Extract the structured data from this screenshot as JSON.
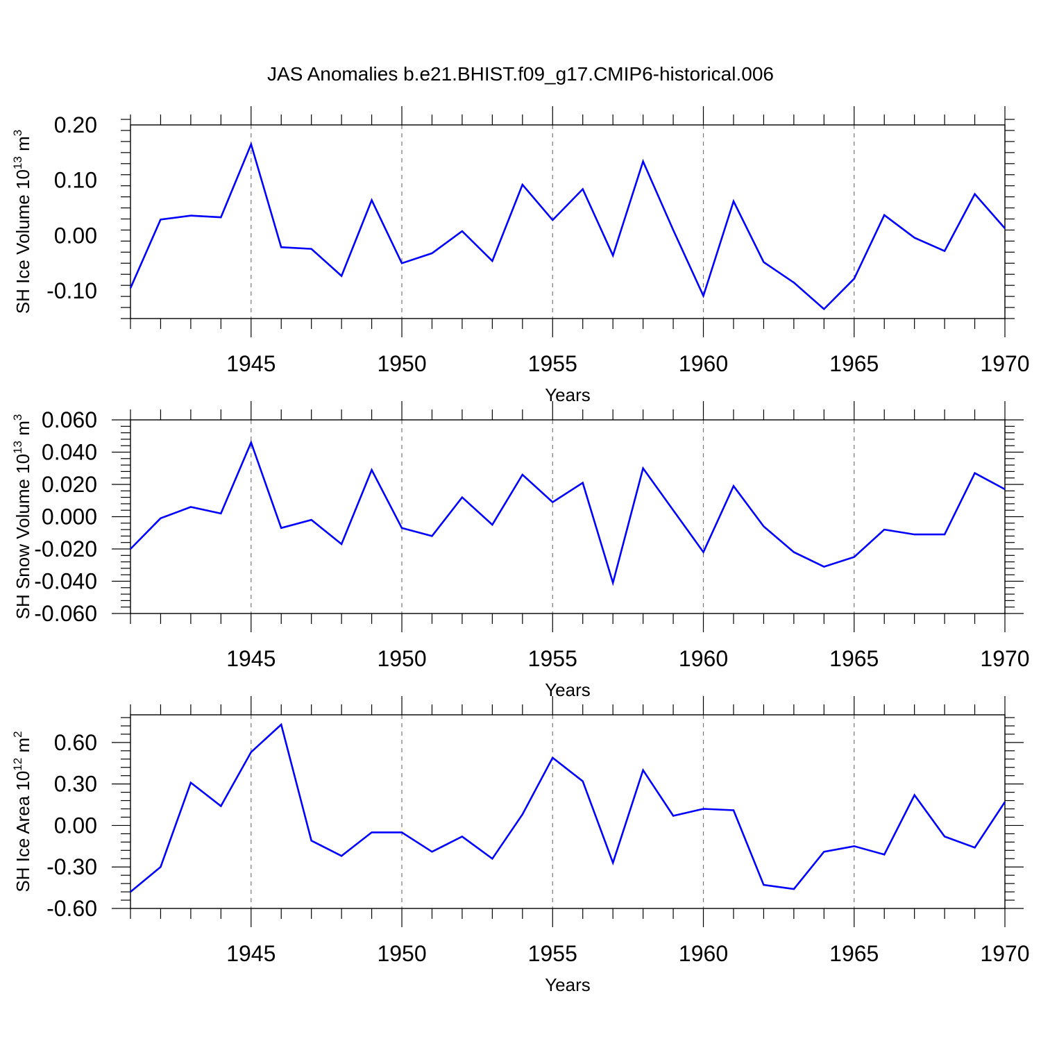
{
  "title": "JAS Anomalies b.e21.BHIST.f09_g17.CMIP6-historical.006",
  "colors": {
    "line": "#0000ff",
    "axis": "#000000",
    "grid": "#777777"
  },
  "chart_data": [
    {
      "type": "line",
      "ylabel": {
        "text": "SH Ice Volume 10",
        "exp": "13",
        "unit": " m",
        "unit_exp": "3"
      },
      "xlabel": "Years",
      "xlim": [
        1941,
        1970
      ],
      "ylim": [
        -0.15,
        0.2
      ],
      "yticks": [
        0.2,
        0.1,
        0.0,
        -0.1
      ],
      "ytick_labels": [
        "0.20",
        "0.10",
        "0.00",
        "-0.10"
      ],
      "xticks": [
        1945,
        1950,
        1955,
        1960,
        1965,
        1970
      ],
      "xtick_labels": [
        "1945",
        "1950",
        "1955",
        "1960",
        "1965",
        "1970"
      ],
      "x": [
        1941,
        1942,
        1943,
        1944,
        1945,
        1946,
        1947,
        1948,
        1949,
        1950,
        1951,
        1952,
        1953,
        1954,
        1955,
        1956,
        1957,
        1958,
        1959,
        1960,
        1961,
        1962,
        1963,
        1964,
        1965,
        1966,
        1967,
        1968,
        1969,
        1970
      ],
      "values": [
        -0.095,
        0.029,
        0.036,
        0.033,
        0.165,
        -0.021,
        -0.024,
        -0.073,
        0.064,
        -0.05,
        -0.032,
        0.008,
        -0.046,
        0.092,
        0.028,
        0.084,
        -0.036,
        0.134,
        0.01,
        -0.109,
        0.062,
        -0.048,
        -0.085,
        -0.133,
        -0.078,
        0.037,
        -0.004,
        -0.028,
        0.075,
        0.013
      ]
    },
    {
      "type": "line",
      "ylabel": {
        "text": "SH Snow Volume 10",
        "exp": "13",
        "unit": " m",
        "unit_exp": "3"
      },
      "xlabel": "Years",
      "xlim": [
        1941,
        1970
      ],
      "ylim": [
        -0.06,
        0.06
      ],
      "yticks": [
        0.06,
        0.04,
        0.02,
        0.0,
        -0.02,
        -0.04,
        -0.06
      ],
      "ytick_labels": [
        "0.060",
        "0.040",
        "0.020",
        "0.000",
        "-0.020",
        "-0.040",
        "-0.060"
      ],
      "xticks": [
        1945,
        1950,
        1955,
        1960,
        1965,
        1970
      ],
      "xtick_labels": [
        "1945",
        "1950",
        "1955",
        "1960",
        "1965",
        "1970"
      ],
      "x": [
        1941,
        1942,
        1943,
        1944,
        1945,
        1946,
        1947,
        1948,
        1949,
        1950,
        1951,
        1952,
        1953,
        1954,
        1955,
        1956,
        1957,
        1958,
        1959,
        1960,
        1961,
        1962,
        1963,
        1964,
        1965,
        1966,
        1967,
        1968,
        1969,
        1970
      ],
      "values": [
        -0.02,
        -0.001,
        0.006,
        0.002,
        0.046,
        -0.007,
        -0.002,
        -0.017,
        0.029,
        -0.007,
        -0.012,
        0.012,
        -0.005,
        0.026,
        0.009,
        0.021,
        -0.041,
        0.03,
        0.004,
        -0.022,
        0.019,
        -0.006,
        -0.022,
        -0.031,
        -0.025,
        -0.008,
        -0.011,
        -0.011,
        0.027,
        0.017
      ]
    },
    {
      "type": "line",
      "ylabel": {
        "text": "SH Ice Area 10",
        "exp": "12",
        "unit": " m",
        "unit_exp": "2"
      },
      "xlabel": "Years",
      "xlim": [
        1941,
        1970
      ],
      "ylim": [
        -0.6,
        0.8
      ],
      "yticks": [
        0.6,
        0.3,
        0.0,
        -0.3,
        -0.6
      ],
      "ytick_labels": [
        "0.60",
        "0.30",
        "0.00",
        "-0.30",
        "-0.60"
      ],
      "xticks": [
        1945,
        1950,
        1955,
        1960,
        1965,
        1970
      ],
      "xtick_labels": [
        "1945",
        "1950",
        "1955",
        "1960",
        "1965",
        "1970"
      ],
      "x": [
        1941,
        1942,
        1943,
        1944,
        1945,
        1946,
        1947,
        1948,
        1949,
        1950,
        1951,
        1952,
        1953,
        1954,
        1955,
        1956,
        1957,
        1958,
        1959,
        1960,
        1961,
        1962,
        1963,
        1964,
        1965,
        1966,
        1967,
        1968,
        1969,
        1970
      ],
      "values": [
        -0.48,
        -0.3,
        0.31,
        0.14,
        0.53,
        0.73,
        -0.11,
        -0.22,
        -0.05,
        -0.05,
        -0.19,
        -0.08,
        -0.24,
        0.08,
        0.49,
        0.32,
        -0.27,
        0.4,
        0.07,
        0.12,
        0.11,
        -0.43,
        -0.46,
        -0.19,
        -0.15,
        -0.21,
        0.22,
        -0.08,
        -0.16,
        0.17
      ]
    }
  ]
}
